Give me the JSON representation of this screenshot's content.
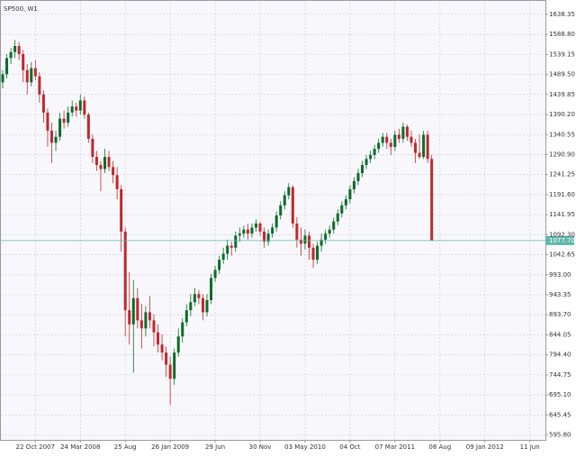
{
  "chart_data": {
    "type": "candlestick",
    "title": "SP500, W1",
    "up_color": "#0b6b2a",
    "down_color": "#c0282d",
    "grid": true,
    "ylim": [
      583.6,
      1669.6
    ],
    "yticks": [
      1638.35,
      {
        "value": 1588.8,
        "label": "1588.80"
      },
      1539.15,
      {
        "value": 1489.5,
        "label": "1489.50"
      },
      1439.85,
      {
        "value": 1390.2,
        "label": "1390.20"
      },
      1340.55,
      {
        "value": 1290.9,
        "label": "1290.90"
      },
      1241.25,
      {
        "value": 1191.6,
        "label": "1191.60"
      },
      1141.95,
      {
        "value": 1092.3,
        "label": "1092.30"
      },
      1042.65,
      {
        "value": 993,
        "label": "993.00"
      },
      943.35,
      {
        "value": 893.7,
        "label": "893.70"
      },
      844.05,
      {
        "value": 794.4,
        "label": "794.40"
      },
      744.75,
      {
        "value": 695.1,
        "label": "695.10"
      },
      645.45,
      {
        "value": 595.8,
        "label": "595.80"
      }
    ],
    "price_line": {
      "value": 1077.7,
      "label": "1077.70",
      "color": "#5fb8a8"
    },
    "categories": [
      null,
      null,
      null,
      null,
      null,
      null,
      null,
      null,
      "22 Oct 2007",
      null,
      null,
      null,
      null,
      null,
      null,
      null,
      null,
      null,
      null,
      "24 Mar 2008",
      null,
      null,
      null,
      null,
      null,
      null,
      null,
      null,
      null,
      null,
      "25 Aug",
      null,
      null,
      null,
      null,
      null,
      null,
      null,
      null,
      null,
      null,
      "26 Jan 2009",
      null,
      null,
      null,
      null,
      null,
      null,
      null,
      null,
      null,
      null,
      "29 Jun",
      null,
      null,
      null,
      null,
      null,
      null,
      null,
      null,
      null,
      null,
      "30 Nov",
      null,
      null,
      null,
      null,
      null,
      null,
      null,
      null,
      null,
      null,
      "03 May 2010",
      null,
      null,
      null,
      null,
      null,
      null,
      null,
      null,
      null,
      null,
      "04 Oct",
      null,
      null,
      null,
      null,
      null,
      null,
      null,
      null,
      null,
      null,
      "07 Mar 2011",
      null,
      null,
      null,
      null,
      null,
      null,
      null,
      null,
      null,
      null,
      "08 Aug",
      null,
      null,
      null,
      null,
      null,
      null,
      null,
      null,
      null,
      null,
      "09 Jan 2012",
      null,
      null,
      null,
      null,
      null,
      null,
      null,
      null,
      null,
      null,
      "11 Jun"
    ],
    "ohlc": [
      [
        1470,
        1500,
        1455,
        1490
      ],
      [
        1490,
        1540,
        1480,
        1530
      ],
      [
        1530,
        1555,
        1515,
        1545
      ],
      [
        1545,
        1575,
        1530,
        1560
      ],
      [
        1560,
        1570,
        1525,
        1540
      ],
      [
        1540,
        1550,
        1470,
        1500
      ],
      [
        1500,
        1515,
        1440,
        1470
      ],
      [
        1470,
        1520,
        1460,
        1505
      ],
      [
        1505,
        1525,
        1475,
        1485
      ],
      [
        1485,
        1495,
        1420,
        1440
      ],
      [
        1440,
        1450,
        1370,
        1395
      ],
      [
        1395,
        1405,
        1310,
        1350
      ],
      [
        1350,
        1370,
        1270,
        1320
      ],
      [
        1320,
        1350,
        1300,
        1335
      ],
      [
        1335,
        1395,
        1325,
        1380
      ],
      [
        1380,
        1400,
        1355,
        1370
      ],
      [
        1370,
        1410,
        1360,
        1395
      ],
      [
        1395,
        1425,
        1385,
        1410
      ],
      [
        1410,
        1420,
        1385,
        1400
      ],
      [
        1400,
        1440,
        1390,
        1425
      ],
      [
        1425,
        1435,
        1380,
        1390
      ],
      [
        1390,
        1395,
        1320,
        1330
      ],
      [
        1330,
        1340,
        1270,
        1285
      ],
      [
        1285,
        1300,
        1250,
        1265
      ],
      [
        1265,
        1275,
        1200,
        1255
      ],
      [
        1255,
        1305,
        1245,
        1285
      ],
      [
        1285,
        1300,
        1250,
        1260
      ],
      [
        1260,
        1275,
        1220,
        1240
      ],
      [
        1240,
        1260,
        1180,
        1205
      ],
      [
        1205,
        1215,
        1050,
        1100
      ],
      [
        1100,
        1110,
        840,
        905
      ],
      [
        905,
        1000,
        820,
        870
      ],
      [
        870,
        980,
        750,
        935
      ],
      [
        935,
        960,
        860,
        880
      ],
      [
        880,
        920,
        810,
        860
      ],
      [
        860,
        915,
        840,
        900
      ],
      [
        900,
        940,
        860,
        880
      ],
      [
        880,
        895,
        815,
        850
      ],
      [
        850,
        870,
        800,
        820
      ],
      [
        820,
        845,
        780,
        800
      ],
      [
        800,
        815,
        740,
        770
      ],
      [
        770,
        790,
        670,
        735
      ],
      [
        735,
        810,
        720,
        800
      ],
      [
        800,
        860,
        790,
        840
      ],
      [
        840,
        885,
        825,
        875
      ],
      [
        875,
        920,
        865,
        905
      ],
      [
        905,
        945,
        890,
        925
      ],
      [
        925,
        960,
        915,
        945
      ],
      [
        945,
        955,
        920,
        935
      ],
      [
        935,
        945,
        880,
        900
      ],
      [
        900,
        945,
        890,
        930
      ],
      [
        930,
        995,
        920,
        985
      ],
      [
        985,
        1015,
        975,
        1005
      ],
      [
        1005,
        1040,
        995,
        1030
      ],
      [
        1030,
        1060,
        1020,
        1045
      ],
      [
        1045,
        1080,
        1030,
        1065
      ],
      [
        1065,
        1075,
        1040,
        1060
      ],
      [
        1060,
        1100,
        1050,
        1090
      ],
      [
        1090,
        1110,
        1075,
        1095
      ],
      [
        1095,
        1115,
        1085,
        1105
      ],
      [
        1105,
        1120,
        1080,
        1095
      ],
      [
        1095,
        1120,
        1085,
        1110
      ],
      [
        1110,
        1130,
        1100,
        1120
      ],
      [
        1120,
        1125,
        1090,
        1100
      ],
      [
        1100,
        1110,
        1060,
        1075
      ],
      [
        1075,
        1105,
        1065,
        1095
      ],
      [
        1095,
        1120,
        1085,
        1110
      ],
      [
        1110,
        1150,
        1100,
        1140
      ],
      [
        1140,
        1175,
        1130,
        1165
      ],
      [
        1165,
        1200,
        1155,
        1190
      ],
      [
        1190,
        1220,
        1180,
        1210
      ],
      [
        1210,
        1215,
        1110,
        1120
      ],
      [
        1120,
        1135,
        1060,
        1080
      ],
      [
        1080,
        1110,
        1040,
        1070
      ],
      [
        1070,
        1105,
        1055,
        1090
      ],
      [
        1090,
        1100,
        1030,
        1060
      ],
      [
        1060,
        1070,
        1010,
        1030
      ],
      [
        1030,
        1075,
        1020,
        1065
      ],
      [
        1065,
        1095,
        1050,
        1080
      ],
      [
        1080,
        1105,
        1070,
        1095
      ],
      [
        1095,
        1115,
        1085,
        1105
      ],
      [
        1105,
        1135,
        1095,
        1125
      ],
      [
        1125,
        1155,
        1115,
        1145
      ],
      [
        1145,
        1175,
        1135,
        1165
      ],
      [
        1165,
        1190,
        1155,
        1180
      ],
      [
        1180,
        1215,
        1170,
        1205
      ],
      [
        1205,
        1235,
        1195,
        1225
      ],
      [
        1225,
        1255,
        1215,
        1245
      ],
      [
        1245,
        1275,
        1235,
        1265
      ],
      [
        1265,
        1290,
        1255,
        1280
      ],
      [
        1280,
        1300,
        1270,
        1290
      ],
      [
        1290,
        1315,
        1280,
        1305
      ],
      [
        1305,
        1330,
        1295,
        1320
      ],
      [
        1320,
        1345,
        1310,
        1335
      ],
      [
        1335,
        1345,
        1305,
        1320
      ],
      [
        1320,
        1330,
        1290,
        1310
      ],
      [
        1310,
        1350,
        1300,
        1340
      ],
      [
        1340,
        1355,
        1320,
        1330
      ],
      [
        1330,
        1370,
        1320,
        1360
      ],
      [
        1360,
        1365,
        1325,
        1335
      ],
      [
        1335,
        1350,
        1310,
        1320
      ],
      [
        1320,
        1330,
        1270,
        1295
      ],
      [
        1295,
        1340,
        1280,
        1285
      ],
      [
        1285,
        1350,
        1280,
        1340
      ],
      [
        1340,
        1350,
        1270,
        1280
      ],
      [
        1280,
        1290,
        1077.7,
        1077.7
      ],
      null,
      null,
      null,
      null,
      null,
      null,
      null,
      null,
      null,
      null,
      null,
      null,
      null,
      null,
      null,
      null,
      null,
      null,
      null,
      null,
      null,
      null,
      null,
      null
    ]
  }
}
